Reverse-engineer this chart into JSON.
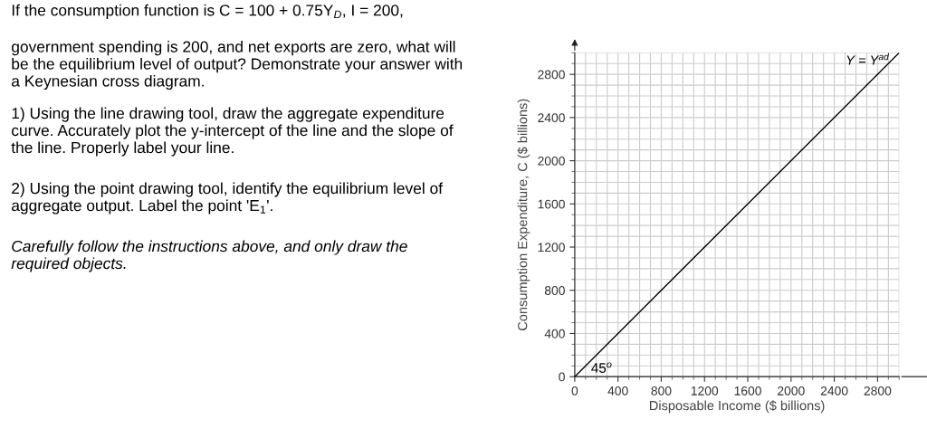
{
  "chart_data": {
    "type": "line",
    "x": [
      0,
      3000
    ],
    "series": [
      {
        "name": "Y = Y$^{ad}$",
        "color": "#000000",
        "values": [
          0,
          3000
        ]
      }
    ],
    "xlim": [
      0,
      3000
    ],
    "ylim": [
      0,
      3000
    ],
    "xticks": [
      0,
      400,
      800,
      1200,
      1600,
      2000,
      2400,
      2800
    ],
    "yticks": [
      0,
      400,
      800,
      1200,
      1600,
      2000,
      2400,
      2800
    ],
    "xlabel": "Disposable Income ($ billions)",
    "ylabel": "Consumption Expenditure, C ($ billions)",
    "grid": true,
    "legend": false,
    "marker": "none",
    "line_style": "solid",
    "annotations": [
      "45$^{o}$",
      "If the consumption function is C = 100 + 0.75Y$_{D}$, I = 200,",
      "government spending is 200, and net exports are zero, what will\nbe the equilibrium level of output? Demonstrate your answer with\na Keynesian cross diagram.",
      "1) Using the line drawing tool, draw the aggregate expenditure\ncurve. Accurately plot the y-intercept of the line and the slope of\nthe line. Properly label your line.",
      "2) Using the point drawing tool, identify the equilibrium level of\naggregate output. Label the point 'E$_{1}$'.",
      "Carefully follow the instructions above, and only draw the\nrequired objects."
    ]
  }
}
